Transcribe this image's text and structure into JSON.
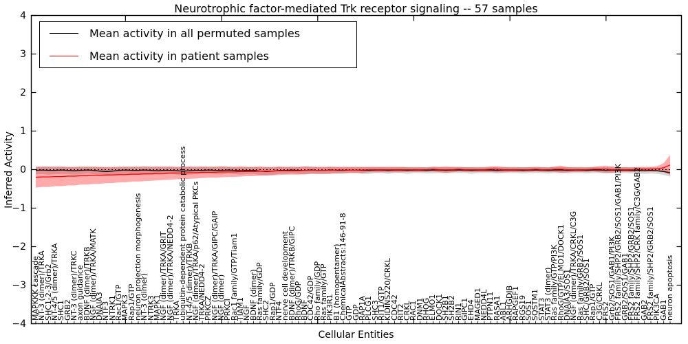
{
  "figure": {
    "title": "Neurotrophic factor-mediated Trk receptor signaling -- 57 samples",
    "xlabel": "Cellular Entities",
    "ylabel": "Inferred Activity"
  },
  "legend": {
    "items": [
      {
        "label": "Mean activity in all permuted samples",
        "color": "#000000"
      },
      {
        "label": "Mean activity in patient samples",
        "color": "#ff0000"
      }
    ]
  },
  "chart_data": {
    "type": "line",
    "title": "Neurotrophic factor-mediated Trk receptor signaling -- 57 samples",
    "xlabel": "Cellular Entities",
    "ylabel": "Inferred Activity",
    "ylim": [
      -4,
      4
    ],
    "ytick_values": [
      4,
      3,
      2,
      1,
      0,
      -1,
      -2,
      -3,
      -4
    ],
    "ytick_labels": [
      "4",
      "3",
      "2",
      "1",
      "0",
      "−1",
      "−2",
      "−3",
      "−4"
    ],
    "grid": false,
    "legend_position": "upper left",
    "zero_line": true,
    "categories": [
      "MAPKKK cascade",
      "NT-3 (dimer)/TRKA",
      "SHC1-2-3/Grb2",
      "NT-4/5 (dimer)/TRKA",
      "SHC1",
      "GRB2",
      "NT-3 (dimer)/TRKC",
      "axon guidance",
      "BDNF (dimer)/TRKB",
      "NGF (dimer)/TRKA/MATK",
      "DNAJA3",
      "NTF3",
      "NTRK1",
      "Rac1/GTP",
      "MAPK3",
      "Rap1/GTP",
      "neuron projection morphogenesis",
      "NT-3 (dimer)",
      "NTRK3",
      "MAPK1",
      "NGF (dimer)/TRKA/GRIT",
      "NGF (dimer)/TRKA/NEDD4-2",
      "TRKA",
      "ubiquitin-dependent protein catabolic process",
      "NT-4/5 (dimer)/TRKB",
      "NGF (dimer)/TRKA/p62/Atypical PKCs",
      "TRKA/NEDD4-2",
      "PRKCZ",
      "NGF (dimer)/TRKA/GIPC/GAIP",
      "NGF (dimer)",
      "PRKCI",
      "Rac1 family/GTP/Tiam1",
      "TIAM1",
      "NGF",
      "BDNF (dimer)",
      "Ras family/GDP",
      "SHC2",
      "Rap1/GDP",
      "NTF4",
      "nerve cell development",
      "BDNF (dimer)/TRKB/GIPC",
      "RhoG/GDP",
      "BDNF",
      "CDC42/GDP",
      "Rho family/GDP",
      "Ras family/GTP",
      "PIK3R1",
      "B1 (homopentamer)",
      "ChemicalAbstracts:146-91-8",
      "GTP",
      "GDP",
      "RAP1A",
      "PLCG1",
      "SHC3",
      "RIT1/GTP",
      "KIDINS220/CRKL",
      "CDC42",
      "RIT2",
      "CRKL",
      "RAC1",
      "DNM1",
      "RHOG",
      "ELMO1",
      "DOCK1",
      "SH2B1",
      "SH2B2",
      "RIN1",
      "GIPC1",
      "EHD4",
      "MAGED1",
      "NEDD4L",
      "PTPN11",
      "RASA1",
      "ABL1",
      "ARHGDIB",
      "RAPGEF1",
      "RGS19",
      "SOS1",
      "SQSTM1",
      "STAT3",
      "STAT3 (dimer)",
      "Ras family/GTP/PI3K",
      "RhoG/GTP/ELMO1/DOCK1",
      "DNAJA3/SOS1",
      "NGF (dimer)/TRKA/CRKL/C3G",
      "Ras family/GRB2/SOS1",
      "SHC/GRB2/SOS1",
      "Rap1/GTP",
      "C3G/CRKL",
      "FRS2",
      "Grb2/SOS1/GAB1/PI3K",
      "FRS2 family/SHP2/GRB2/SOS1/GAB1/PI3K",
      "GRB2/SOS1/GAB1",
      "FRS2 family/SHP2/GRB2/SOS1",
      "FRS2 family/SHP2/CRK family/C3G/GAB2",
      "GAB2",
      "FRS2 family/SHP2/GRB2/SOS1",
      "PIK3CA",
      "GAB1",
      "neuron apoptosis"
    ],
    "series": [
      {
        "name": "Mean activity in all permuted samples",
        "color": "#000000",
        "band_color": "rgba(120,120,120,0.30)",
        "mean": [
          -0.02,
          -0.01,
          -0.02,
          -0.02,
          -0.01,
          -0.02,
          -0.03,
          -0.02,
          -0.01,
          -0.02,
          -0.04,
          -0.05,
          -0.04,
          -0.02,
          -0.01,
          -0.02,
          -0.02,
          -0.01,
          -0.02,
          -0.03,
          -0.02,
          -0.02,
          -0.03,
          -0.04,
          -0.03,
          -0.02,
          -0.02,
          -0.01,
          -0.02,
          -0.02,
          -0.01,
          -0.02,
          -0.03,
          -0.02,
          -0.02,
          -0.04,
          -0.05,
          -0.04,
          -0.02,
          -0.02,
          -0.01,
          -0.02,
          -0.02,
          -0.01,
          -0.02,
          -0.02,
          -0.01,
          -0.02,
          -0.02,
          -0.01,
          -0.01,
          -0.02,
          -0.02,
          -0.01,
          -0.01,
          -0.02,
          -0.01,
          -0.01,
          -0.02,
          -0.01,
          -0.01,
          -0.02,
          -0.01,
          -0.01,
          -0.02,
          -0.01,
          -0.01,
          -0.01,
          -0.02,
          -0.01,
          -0.01,
          -0.01,
          -0.02,
          -0.01,
          -0.01,
          -0.01,
          -0.02,
          -0.01,
          -0.01,
          -0.01,
          -0.02,
          -0.01,
          -0.01,
          -0.02,
          -0.01,
          -0.01,
          -0.02,
          -0.01,
          -0.01,
          -0.02,
          -0.01,
          -0.02,
          -0.01,
          -0.02,
          -0.02,
          -0.03,
          -0.02,
          -0.03,
          -0.05,
          -0.08
        ],
        "half_width": [
          0.1,
          0.1,
          0.11,
          0.1,
          0.1,
          0.09,
          0.1,
          0.1,
          0.09,
          0.1,
          0.11,
          0.11,
          0.1,
          0.1,
          0.09,
          0.1,
          0.1,
          0.09,
          0.1,
          0.1,
          0.1,
          0.09,
          0.1,
          0.11,
          0.1,
          0.1,
          0.09,
          0.09,
          0.1,
          0.1,
          0.09,
          0.09,
          0.1,
          0.09,
          0.09,
          0.1,
          0.11,
          0.1,
          0.09,
          0.09,
          0.09,
          0.09,
          0.1,
          0.09,
          0.09,
          0.09,
          0.09,
          0.09,
          0.09,
          0.08,
          0.08,
          0.09,
          0.09,
          0.08,
          0.08,
          0.09,
          0.08,
          0.08,
          0.09,
          0.08,
          0.08,
          0.08,
          0.09,
          0.08,
          0.08,
          0.08,
          0.08,
          0.08,
          0.09,
          0.08,
          0.08,
          0.08,
          0.08,
          0.08,
          0.08,
          0.08,
          0.08,
          0.08,
          0.08,
          0.08,
          0.08,
          0.08,
          0.08,
          0.08,
          0.08,
          0.08,
          0.08,
          0.08,
          0.08,
          0.08,
          0.08,
          0.08,
          0.08,
          0.08,
          0.08,
          0.08,
          0.08,
          0.08,
          0.09,
          0.1
        ]
      },
      {
        "name": "Mean activity in patient samples",
        "color": "#ff0000",
        "band_color": "rgba(255,0,0,0.33)",
        "mean": [
          -0.2,
          -0.19,
          -0.19,
          -0.18,
          -0.18,
          -0.17,
          -0.17,
          -0.16,
          -0.16,
          -0.15,
          -0.15,
          -0.14,
          -0.14,
          -0.13,
          -0.13,
          -0.12,
          -0.12,
          -0.11,
          -0.11,
          -0.1,
          -0.1,
          -0.09,
          -0.09,
          -0.09,
          -0.08,
          -0.08,
          -0.07,
          -0.07,
          -0.07,
          -0.06,
          -0.06,
          -0.06,
          -0.05,
          -0.05,
          -0.05,
          -0.04,
          -0.04,
          -0.04,
          -0.03,
          -0.03,
          -0.03,
          -0.03,
          -0.02,
          -0.02,
          -0.02,
          -0.02,
          -0.02,
          -0.01,
          -0.01,
          -0.01,
          -0.01,
          -0.01,
          0.0,
          0.0,
          0.0,
          0.0,
          0.0,
          0.0,
          0.0,
          0.0,
          0.0,
          0.0,
          0.01,
          0.0,
          0.0,
          0.0,
          0.01,
          0.0,
          0.0,
          0.0,
          0.0,
          0.01,
          0.01,
          0.0,
          0.0,
          0.0,
          0.0,
          0.0,
          0.01,
          0.0,
          0.0,
          0.01,
          0.01,
          0.0,
          0.0,
          0.0,
          0.0,
          0.01,
          0.01,
          0.01,
          0.0,
          0.0,
          0.0,
          0.0,
          0.01,
          0.01,
          0.01,
          0.02,
          0.05,
          0.12
        ],
        "half_width": [
          0.27,
          0.26,
          0.26,
          0.25,
          0.25,
          0.24,
          0.24,
          0.23,
          0.23,
          0.22,
          0.22,
          0.21,
          0.21,
          0.2,
          0.2,
          0.19,
          0.19,
          0.19,
          0.18,
          0.18,
          0.17,
          0.17,
          0.16,
          0.16,
          0.16,
          0.15,
          0.15,
          0.14,
          0.14,
          0.14,
          0.13,
          0.13,
          0.13,
          0.12,
          0.12,
          0.12,
          0.11,
          0.11,
          0.11,
          0.1,
          0.1,
          0.1,
          0.1,
          0.09,
          0.09,
          0.09,
          0.09,
          0.08,
          0.08,
          0.08,
          0.08,
          0.08,
          0.07,
          0.07,
          0.07,
          0.07,
          0.07,
          0.07,
          0.06,
          0.06,
          0.06,
          0.06,
          0.06,
          0.07,
          0.08,
          0.07,
          0.06,
          0.06,
          0.06,
          0.06,
          0.06,
          0.07,
          0.08,
          0.07,
          0.06,
          0.06,
          0.06,
          0.06,
          0.06,
          0.06,
          0.06,
          0.07,
          0.09,
          0.07,
          0.06,
          0.06,
          0.06,
          0.06,
          0.08,
          0.09,
          0.08,
          0.06,
          0.06,
          0.06,
          0.06,
          0.06,
          0.06,
          0.07,
          0.12,
          0.26
        ]
      }
    ]
  }
}
